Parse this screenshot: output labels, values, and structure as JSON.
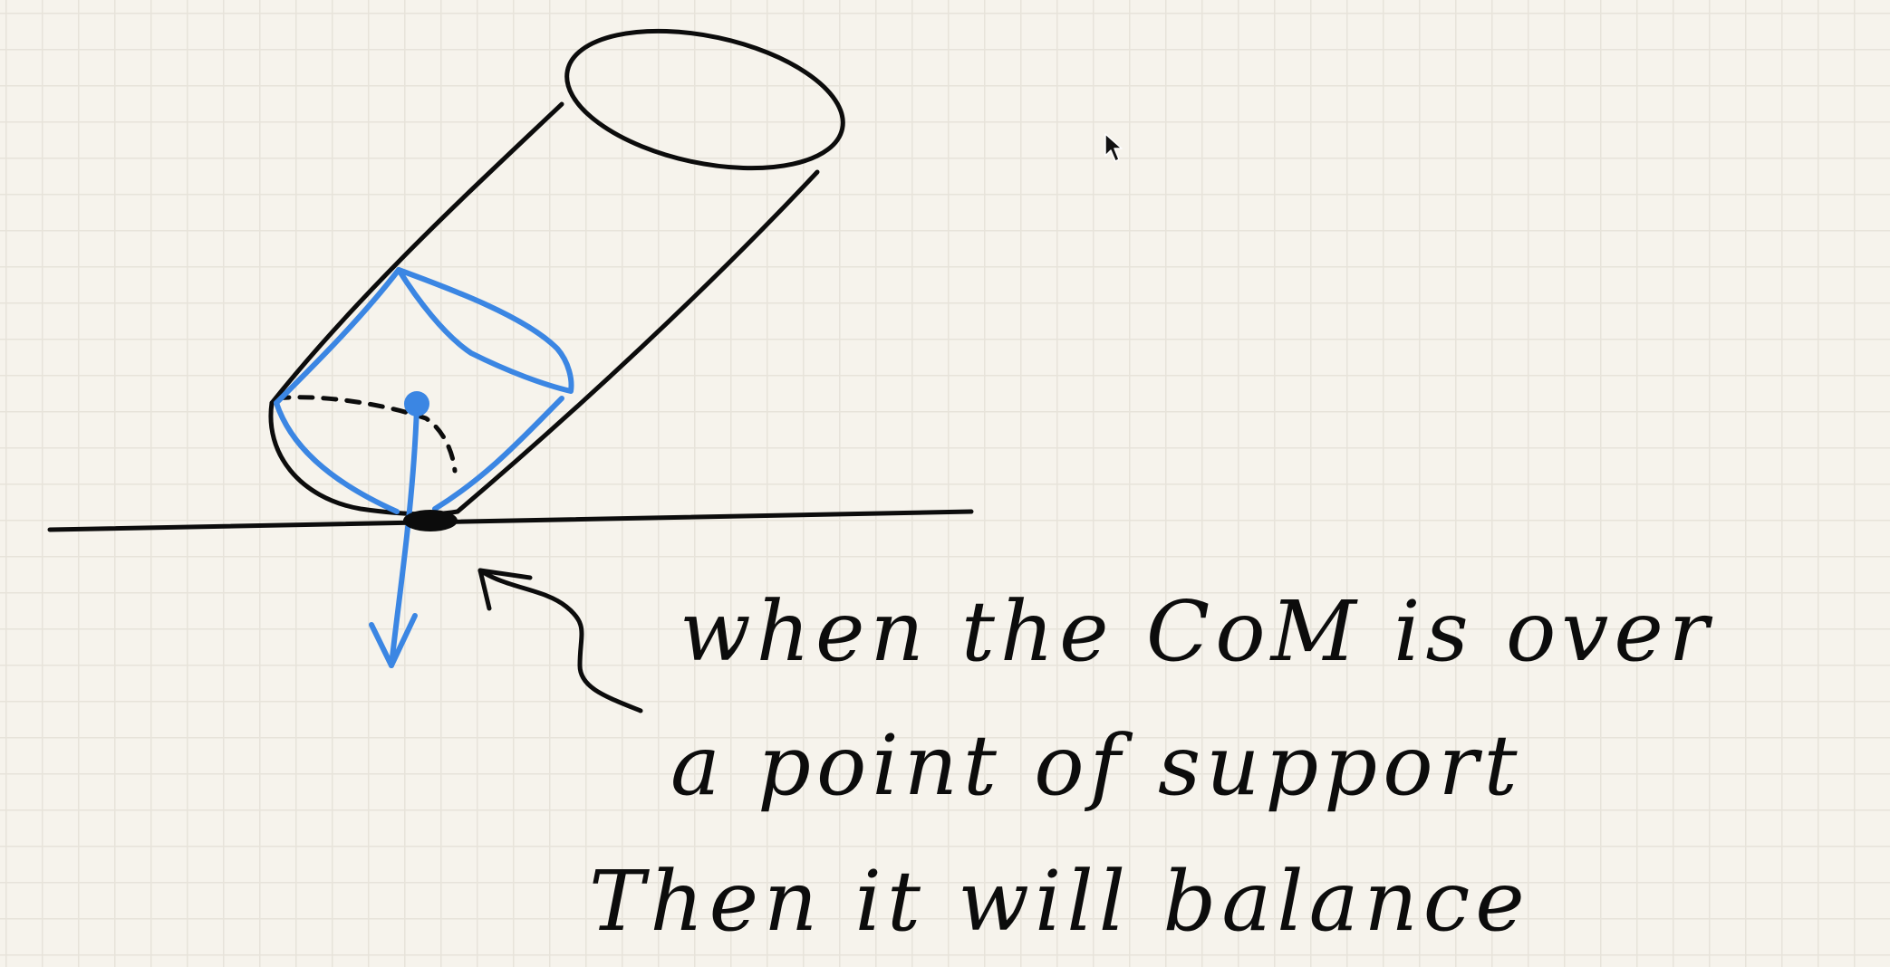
{
  "note": {
    "line1": "when the CoM is over",
    "line2": "a point of support",
    "line3": "Then it will balance"
  },
  "colors": {
    "background": "#f6f3ec",
    "grid": "#e7e3da",
    "ink": "#0c0c0c",
    "annotation_blue": "#3b86e3"
  },
  "icons": {
    "cursor": "mouse-pointer-icon"
  }
}
